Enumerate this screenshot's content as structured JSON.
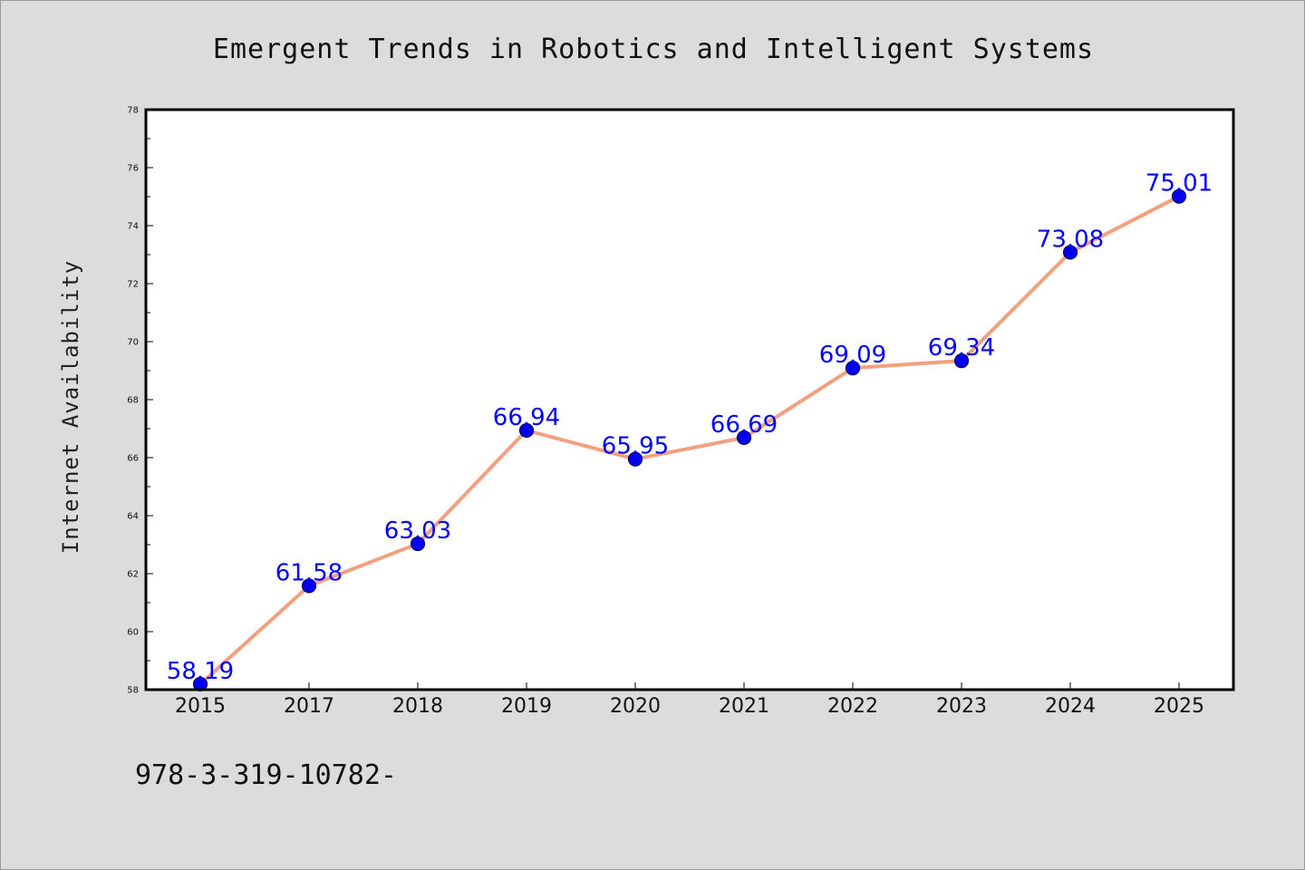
{
  "chart_data": {
    "type": "line",
    "title": "Emergent Trends in Robotics and Intelligent Systems",
    "xlabel": "",
    "ylabel": "Internet Availability",
    "categories": [
      "2015",
      "2017",
      "2018",
      "2019",
      "2020",
      "2021",
      "2022",
      "2023",
      "2024",
      "2025"
    ],
    "series": [
      {
        "values": [
          58.19,
          61.58,
          63.03,
          66.94,
          65.95,
          66.69,
          69.09,
          69.34,
          73.08,
          75.01
        ],
        "data_labels": [
          "58.19",
          "61.58",
          "63.03",
          "66.94",
          "65.95",
          "66.69",
          "69.09",
          "69.34",
          "73.08",
          "75.01"
        ]
      }
    ],
    "ylim": [
      58,
      78
    ],
    "yticks": [
      "58",
      "60",
      "62",
      "64",
      "66",
      "68",
      "70",
      "72",
      "74",
      "76",
      "78"
    ],
    "grid": false,
    "legend": "none",
    "colors": {
      "line": "#f4a07e",
      "marker_fill": "#0000ee",
      "marker_edge": "#000066",
      "data_label": "#0000ff",
      "plot_background": "#ffffff",
      "figure_background": "#dcdcdc"
    }
  },
  "footer": {
    "text": "978-3-319-10782-"
  }
}
